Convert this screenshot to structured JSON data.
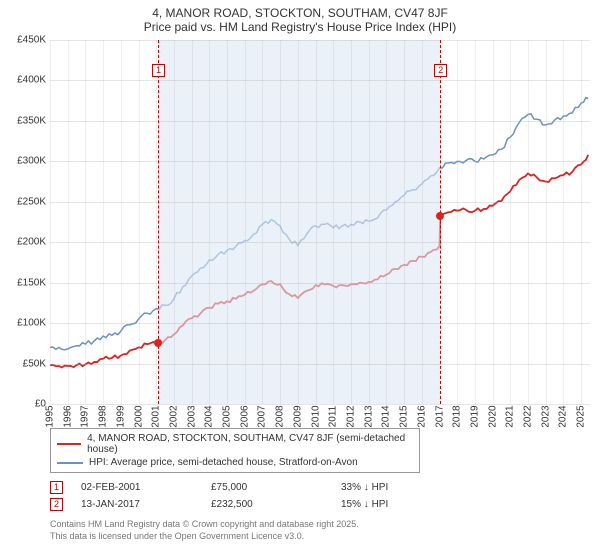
{
  "title_line1": "4, MANOR ROAD, STOCKTON, SOUTHAM, CV47 8JF",
  "title_line2": "Price paid vs. HM Land Registry's House Price Index (HPI)",
  "chart": {
    "type": "line",
    "xlim": [
      1995,
      2025.5
    ],
    "ylim": [
      0,
      450
    ],
    "y_ticks": [
      0,
      50,
      100,
      150,
      200,
      250,
      300,
      350,
      400,
      450
    ],
    "y_tick_labels": [
      "£0",
      "£50K",
      "£100K",
      "£150K",
      "£200K",
      "£250K",
      "£300K",
      "£350K",
      "£400K",
      "£450K"
    ],
    "x_ticks": [
      1995,
      1996,
      1997,
      1998,
      1999,
      2000,
      2001,
      2002,
      2003,
      2004,
      2005,
      2006,
      2007,
      2008,
      2009,
      2010,
      2011,
      2012,
      2013,
      2014,
      2015,
      2016,
      2017,
      2018,
      2019,
      2020,
      2021,
      2022,
      2023,
      2024,
      2025
    ],
    "grid_color": "#aaaaaa",
    "background_color": "#ffffff",
    "shade_start_x": 2001.1,
    "shade_end_x": 2017.04,
    "shade_color": "#dde8f3",
    "series": {
      "hpi": {
        "color": "#6b90c4",
        "line_width": 1.5,
        "points": [
          [
            1995,
            70
          ],
          [
            1995.5,
            70
          ],
          [
            1996,
            68
          ],
          [
            1996.5,
            72
          ],
          [
            1997,
            74
          ],
          [
            1997.5,
            78
          ],
          [
            1998,
            84
          ],
          [
            1998.5,
            85
          ],
          [
            1999,
            90
          ],
          [
            1999.5,
            98
          ],
          [
            2000,
            105
          ],
          [
            2000.5,
            112
          ],
          [
            2001,
            118
          ],
          [
            2001.5,
            122
          ],
          [
            2002,
            130
          ],
          [
            2002.5,
            145
          ],
          [
            2003,
            158
          ],
          [
            2003.5,
            168
          ],
          [
            2004,
            178
          ],
          [
            2004.5,
            185
          ],
          [
            2005,
            190
          ],
          [
            2005.5,
            195
          ],
          [
            2006,
            202
          ],
          [
            2006.5,
            210
          ],
          [
            2007,
            222
          ],
          [
            2007.5,
            228
          ],
          [
            2008,
            220
          ],
          [
            2008.5,
            204
          ],
          [
            2009,
            196
          ],
          [
            2009.5,
            210
          ],
          [
            2010,
            220
          ],
          [
            2010.5,
            222
          ],
          [
            2011,
            218
          ],
          [
            2011.5,
            220
          ],
          [
            2012,
            222
          ],
          [
            2012.5,
            225
          ],
          [
            2013,
            226
          ],
          [
            2013.5,
            230
          ],
          [
            2014,
            240
          ],
          [
            2014.5,
            250
          ],
          [
            2015,
            258
          ],
          [
            2015.5,
            265
          ],
          [
            2016,
            272
          ],
          [
            2016.5,
            282
          ],
          [
            2017,
            292
          ],
          [
            2017.5,
            298
          ],
          [
            2018,
            300
          ],
          [
            2018.5,
            301
          ],
          [
            2019,
            300
          ],
          [
            2019.5,
            303
          ],
          [
            2020,
            308
          ],
          [
            2020.5,
            315
          ],
          [
            2021,
            330
          ],
          [
            2021.5,
            348
          ],
          [
            2022,
            358
          ],
          [
            2022.5,
            352
          ],
          [
            2023,
            345
          ],
          [
            2023.5,
            351
          ],
          [
            2024,
            356
          ],
          [
            2024.5,
            360
          ],
          [
            2025,
            372
          ],
          [
            2025.4,
            378
          ]
        ]
      },
      "price_paid": {
        "color": "#dd2222",
        "line_width": 1.8,
        "points": [
          [
            1995,
            48
          ],
          [
            1995.5,
            47
          ],
          [
            1996,
            47
          ],
          [
            1996.5,
            48
          ],
          [
            1997,
            49
          ],
          [
            1997.5,
            52
          ],
          [
            1998,
            56
          ],
          [
            1998.5,
            57
          ],
          [
            1999,
            60
          ],
          [
            1999.5,
            66
          ],
          [
            2000,
            70
          ],
          [
            2000.5,
            74
          ],
          [
            2001,
            75
          ],
          [
            2001.1,
            75
          ],
          [
            2001.5,
            79
          ],
          [
            2002,
            86
          ],
          [
            2002.5,
            97
          ],
          [
            2003,
            106
          ],
          [
            2003.5,
            112
          ],
          [
            2004,
            119
          ],
          [
            2004.5,
            124
          ],
          [
            2005,
            127
          ],
          [
            2005.5,
            130
          ],
          [
            2006,
            135
          ],
          [
            2006.5,
            140
          ],
          [
            2007,
            148
          ],
          [
            2007.5,
            152
          ],
          [
            2008,
            148
          ],
          [
            2008.5,
            136
          ],
          [
            2009,
            131
          ],
          [
            2009.5,
            140
          ],
          [
            2010,
            147
          ],
          [
            2010.5,
            148
          ],
          [
            2011,
            146
          ],
          [
            2011.5,
            147
          ],
          [
            2012,
            148
          ],
          [
            2012.5,
            150
          ],
          [
            2013,
            151
          ],
          [
            2013.5,
            154
          ],
          [
            2014,
            160
          ],
          [
            2014.5,
            167
          ],
          [
            2015,
            172
          ],
          [
            2015.5,
            177
          ],
          [
            2016,
            182
          ],
          [
            2016.5,
            188
          ],
          [
            2017,
            195
          ],
          [
            2017.04,
            232.5
          ],
          [
            2017.5,
            237
          ],
          [
            2018,
            239
          ],
          [
            2018.5,
            240
          ],
          [
            2019,
            239
          ],
          [
            2019.5,
            241
          ],
          [
            2020,
            245
          ],
          [
            2020.5,
            251
          ],
          [
            2021,
            263
          ],
          [
            2021.5,
            277
          ],
          [
            2022,
            285
          ],
          [
            2022.5,
            280
          ],
          [
            2023,
            275
          ],
          [
            2023.5,
            279
          ],
          [
            2024,
            283
          ],
          [
            2024.5,
            287
          ],
          [
            2025,
            296
          ],
          [
            2025.4,
            308
          ]
        ]
      }
    },
    "markers": [
      {
        "n": "1",
        "x": 2001.1,
        "y": 75
      },
      {
        "n": "2",
        "x": 2017.04,
        "y": 232.5
      }
    ]
  },
  "legend": [
    {
      "color": "#dd2222",
      "label": "4, MANOR ROAD, STOCKTON, SOUTHAM, CV47 8JF (semi-detached house)"
    },
    {
      "color": "#6b90c4",
      "label": "HPI: Average price, semi-detached house, Stratford-on-Avon"
    }
  ],
  "marker_table": [
    {
      "n": "1",
      "date": "02-FEB-2001",
      "price": "£75,000",
      "delta": "33% ↓ HPI"
    },
    {
      "n": "2",
      "date": "13-JAN-2017",
      "price": "£232,500",
      "delta": "15% ↓ HPI"
    }
  ],
  "footer_line1": "Contains HM Land Registry data © Crown copyright and database right 2025.",
  "footer_line2": "This data is licensed under the Open Government Licence v3.0."
}
